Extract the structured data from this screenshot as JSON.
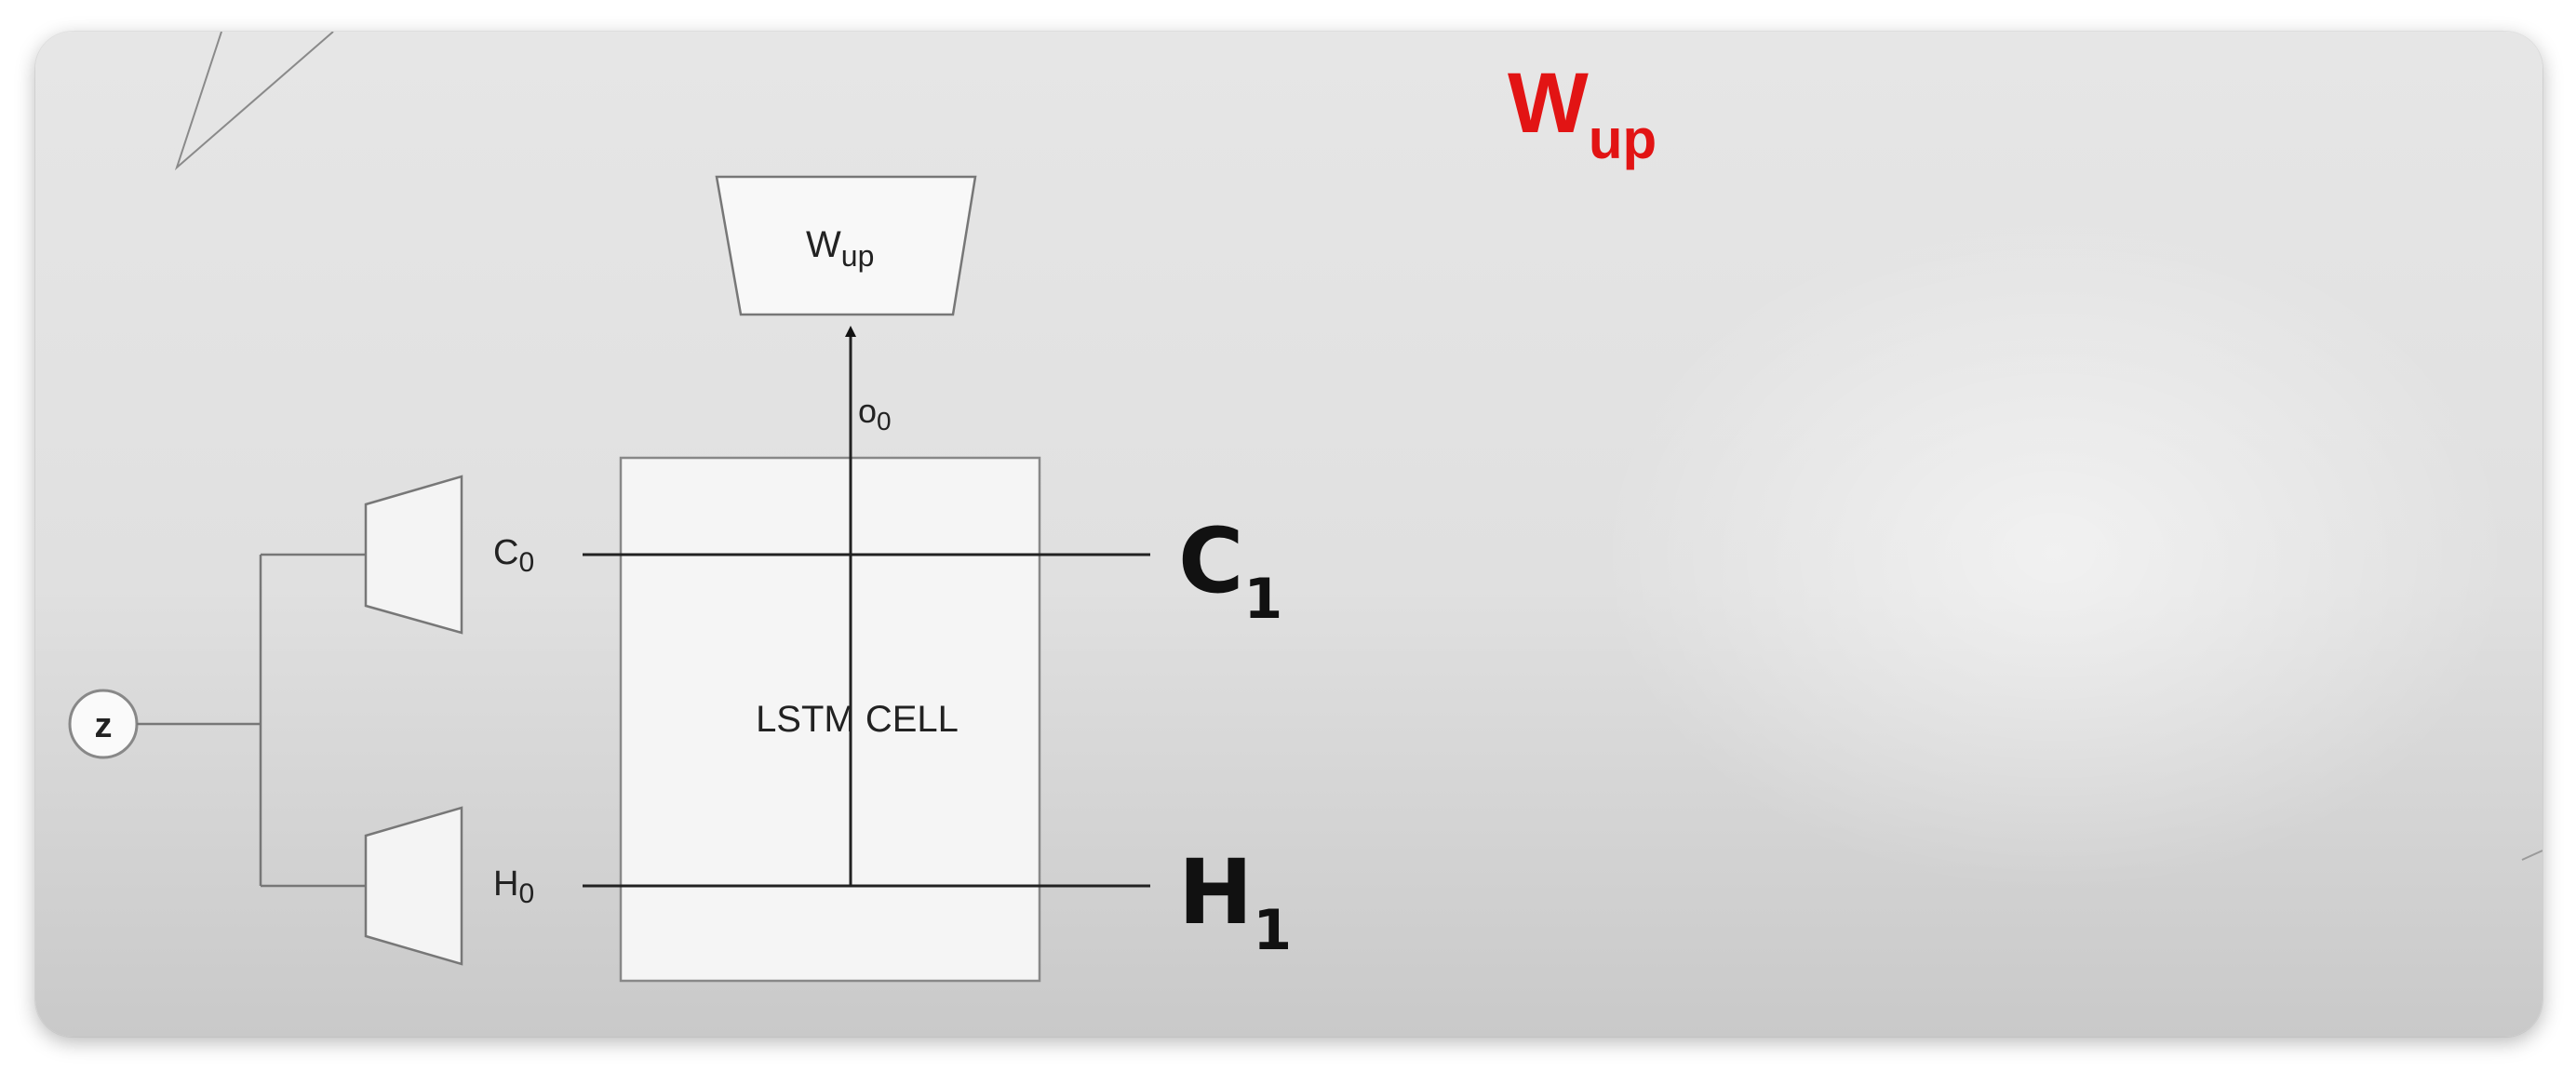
{
  "title": {
    "main": "W",
    "sub": "up",
    "color": "#e21414"
  },
  "diagram": {
    "z_node": "z",
    "c0_label": {
      "main": "C",
      "sub": "0"
    },
    "h0_label": {
      "main": "H",
      "sub": "0"
    },
    "cell_label": "LSTM CELL",
    "o0_label": {
      "main": "o",
      "sub": "0"
    },
    "wup_box": {
      "main": "W",
      "sub": "up"
    },
    "c1_label": {
      "main": "C",
      "sub": "1"
    },
    "h1_label": {
      "main": "H",
      "sub": "1"
    }
  }
}
